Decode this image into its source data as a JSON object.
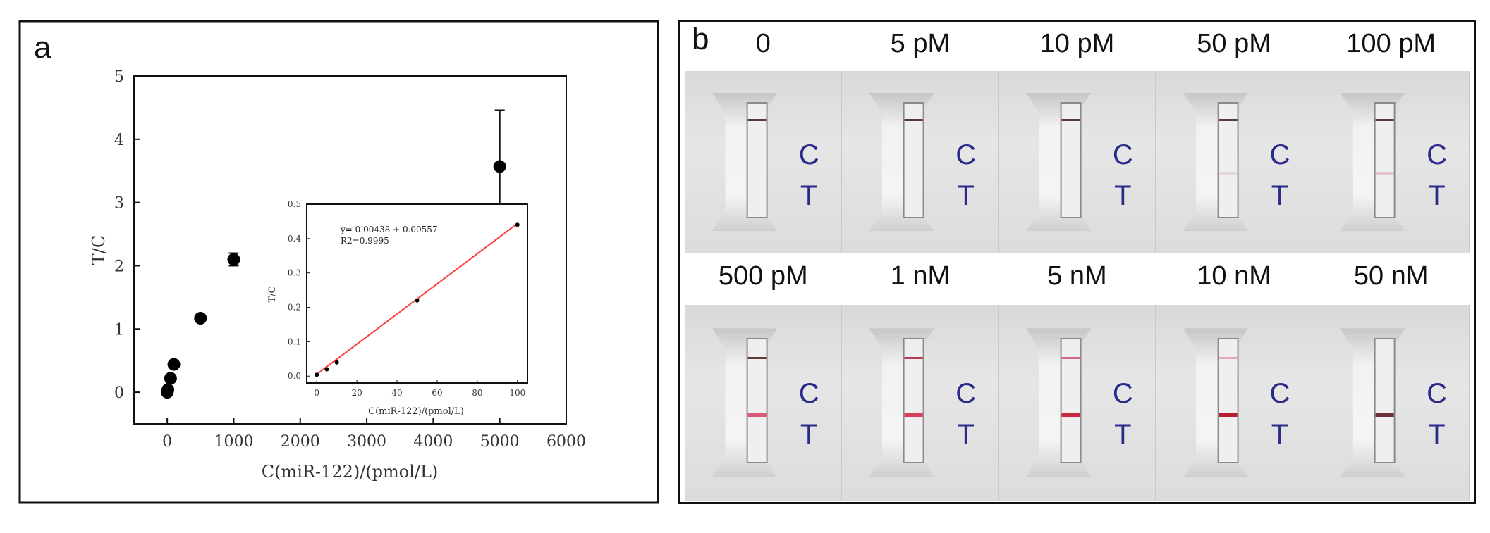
{
  "panel_a": {
    "letter": "a",
    "inset_equation": "y= 0.00438 + 0.00557",
    "inset_r2": "R2=0.9995"
  },
  "panel_b": {
    "letter": "b",
    "top_labels": [
      "0",
      "5 pM",
      "10 pM",
      "50 pM",
      "100 pM"
    ],
    "bottom_labels": [
      "500 pM",
      "1 nM",
      "5 nM",
      "10 nM",
      "50 nM"
    ],
    "c_letter": "C",
    "t_letter": "T",
    "top_strips": [
      {
        "c_color": "#5a3a3a",
        "t_color": "transparent"
      },
      {
        "c_color": "#5a3a3a",
        "t_color": "transparent"
      },
      {
        "c_color": "#5a3a3a",
        "t_color": "transparent"
      },
      {
        "c_color": "#5a3a3a",
        "t_color": "#e6d6d8"
      },
      {
        "c_color": "#5a3a3a",
        "t_color": "#e3c6cc"
      }
    ],
    "bottom_strips": [
      {
        "c_color": "#5e3c3c",
        "t_color": "#d95a72"
      },
      {
        "c_color": "#b23c50",
        "t_color": "#d93f5c"
      },
      {
        "c_color": "#d46a80",
        "t_color": "#c8283f"
      },
      {
        "c_color": "#e7a7b3",
        "t_color": "#b71c31"
      },
      {
        "c_color": "#ececec",
        "t_color": "#6b2f35"
      }
    ]
  },
  "chart_data": [
    {
      "type": "scatter",
      "title": "",
      "xlabel": "C(miR-122)/(pmol/L)",
      "ylabel": "T/C",
      "xlim": [
        -500,
        6000
      ],
      "ylim": [
        -0.5,
        5
      ],
      "xticks": [
        "0",
        "1000",
        "2000",
        "3000",
        "4000",
        "5000",
        "6000"
      ],
      "yticks": [
        "0",
        "1",
        "2",
        "3",
        "4",
        "5"
      ],
      "series": [
        {
          "x": [
            0,
            5,
            10,
            50,
            100,
            500,
            1000,
            5000
          ],
          "y": [
            0.0,
            0.02,
            0.04,
            0.22,
            0.44,
            1.17,
            2.1,
            3.57
          ],
          "error": [
            0,
            0,
            0,
            0,
            0,
            0.05,
            0.1,
            0.89
          ]
        }
      ]
    },
    {
      "type": "line",
      "title": "",
      "xlabel": "C(miR-122)/(pmol/L)",
      "ylabel": "T/C",
      "xlim": [
        -5,
        105
      ],
      "ylim": [
        -0.02,
        0.5
      ],
      "xticks": [
        "0",
        "20",
        "40",
        "60",
        "80",
        "100"
      ],
      "yticks": [
        "0.0",
        "0.1",
        "0.2",
        "0.3",
        "0.4",
        "0.5"
      ],
      "points": {
        "x": [
          0,
          5,
          10,
          50,
          100
        ],
        "y": [
          0.004,
          0.02,
          0.04,
          0.22,
          0.44
        ]
      },
      "fit": {
        "slope": 0.00438,
        "intercept": 0.00557,
        "color": "#ff3b3b"
      }
    }
  ]
}
